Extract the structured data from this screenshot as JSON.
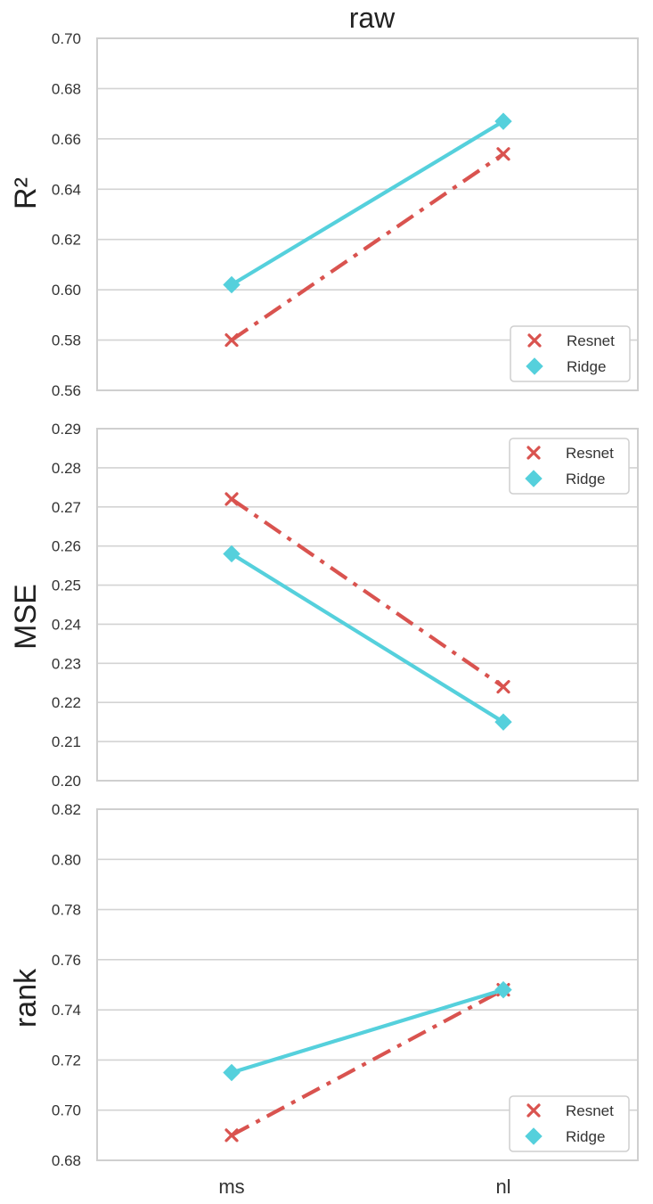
{
  "colors": {
    "resnet": "#d9534f",
    "ridge": "#55d0dc",
    "grid": "#d3d3d3",
    "frame": "#cfcfcf"
  },
  "chart_data": [
    {
      "type": "line",
      "title": "raw",
      "ylabel": "R²",
      "categories": [
        "ms",
        "nl"
      ],
      "ylim": [
        0.56,
        0.7
      ],
      "yticks": [
        "0.56",
        "0.58",
        "0.60",
        "0.62",
        "0.64",
        "0.66",
        "0.68",
        "0.70"
      ],
      "grid": true,
      "legend_position": "bottom-right",
      "series": [
        {
          "name": "Resnet",
          "values": [
            0.58,
            0.654
          ],
          "marker": "x",
          "linestyle": "dash-dot"
        },
        {
          "name": "Ridge",
          "values": [
            0.602,
            0.667
          ],
          "marker": "diamond",
          "linestyle": "solid"
        }
      ]
    },
    {
      "type": "line",
      "title": "",
      "ylabel": "MSE",
      "categories": [
        "ms",
        "nl"
      ],
      "ylim": [
        0.2,
        0.29
      ],
      "yticks": [
        "0.20",
        "0.21",
        "0.22",
        "0.23",
        "0.24",
        "0.25",
        "0.26",
        "0.27",
        "0.28",
        "0.29"
      ],
      "grid": true,
      "legend_position": "top-right",
      "series": [
        {
          "name": "Resnet",
          "values": [
            0.272,
            0.224
          ],
          "marker": "x",
          "linestyle": "dash-dot"
        },
        {
          "name": "Ridge",
          "values": [
            0.258,
            0.215
          ],
          "marker": "diamond",
          "linestyle": "solid"
        }
      ]
    },
    {
      "type": "line",
      "title": "",
      "ylabel": "rank",
      "categories": [
        "ms",
        "nl"
      ],
      "ylim": [
        0.68,
        0.82
      ],
      "yticks": [
        "0.68",
        "0.70",
        "0.72",
        "0.74",
        "0.76",
        "0.78",
        "0.80",
        "0.82"
      ],
      "grid": true,
      "legend_position": "bottom-right",
      "series": [
        {
          "name": "Resnet",
          "values": [
            0.69,
            0.748
          ],
          "marker": "x",
          "linestyle": "dash-dot"
        },
        {
          "name": "Ridge",
          "values": [
            0.715,
            0.748
          ],
          "marker": "diamond",
          "linestyle": "solid"
        }
      ]
    }
  ]
}
